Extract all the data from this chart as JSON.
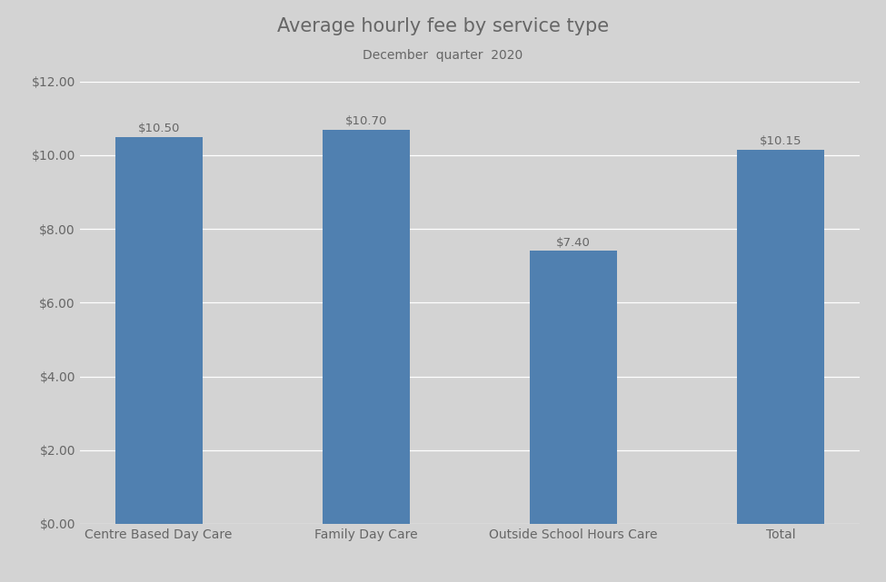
{
  "title": "Average hourly fee by service type",
  "subtitle": "December  quarter  2020",
  "categories": [
    "Centre Based Day Care",
    "Family Day Care",
    "Outside School Hours Care",
    "Total"
  ],
  "values": [
    10.5,
    10.7,
    7.4,
    10.15
  ],
  "bar_color": "#5080b0",
  "background_color": "#d3d3d3",
  "ylim": [
    0,
    12
  ],
  "yticks": [
    0,
    2,
    4,
    6,
    8,
    10,
    12
  ],
  "ytick_labels": [
    "$0.00",
    "$2.00",
    "$4.00",
    "$6.00",
    "$8.00",
    "$10.00",
    "$12.00"
  ],
  "value_labels": [
    "$10.50",
    "$10.70",
    "$7.40",
    "$10.15"
  ],
  "title_fontsize": 15,
  "subtitle_fontsize": 10,
  "tick_label_fontsize": 10,
  "value_label_fontsize": 9.5,
  "text_color": "#666666",
  "bar_width": 0.42
}
